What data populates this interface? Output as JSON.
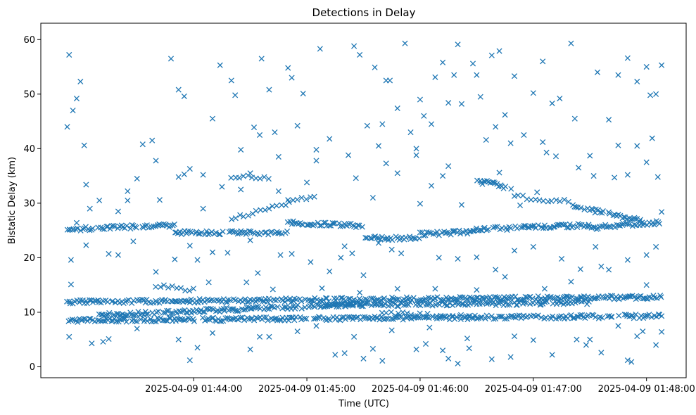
{
  "chart_data": {
    "type": "scatter",
    "title": "Detections in Delay",
    "xlabel": "Time (UTC)",
    "ylabel": "Bistatic Delay (km)",
    "marker": "x",
    "color": "#1f77b4",
    "grid": false,
    "xlim": [
      "2025-04-09 01:42:39",
      "2025-04-09 01:48:21"
    ],
    "ylim": [
      -2,
      63
    ],
    "x_ticks": [
      "2025-04-09 01:44:00",
      "2025-04-09 01:45:00",
      "2025-04-09 01:46:00",
      "2025-04-09 01:47:00",
      "2025-04-09 01:48:00"
    ],
    "y_ticks": [
      0,
      10,
      20,
      30,
      40,
      50,
      60
    ],
    "data_window": [
      "2025-04-09 01:42:53",
      "2025-04-09 01:48:08"
    ],
    "tracks": [
      {
        "start": "2025-04-09 01:42:53",
        "end": "2025-04-09 01:48:08",
        "y_start": 8.5,
        "y_end": 9.3,
        "dense": true
      },
      {
        "start": "2025-04-09 01:42:53",
        "end": "2025-04-09 01:48:08",
        "y_start": 11.9,
        "y_end": 12.8,
        "dense": true
      },
      {
        "start": "2025-04-09 01:43:10",
        "end": "2025-04-09 01:45:30",
        "y_start": 9.5,
        "y_end": 11.5,
        "dense": true
      },
      {
        "start": "2025-04-09 01:45:10",
        "end": "2025-04-09 01:47:30",
        "y_start": 11.3,
        "y_end": 11.8,
        "dense": true
      },
      {
        "start": "2025-04-09 01:45:40",
        "end": "2025-04-09 01:46:30",
        "y_start": 9.8,
        "y_end": 9.2,
        "dense": false
      },
      {
        "start": "2025-04-09 01:42:53",
        "end": "2025-04-09 01:43:50",
        "y_start": 25.2,
        "y_end": 26.0,
        "dense": true
      },
      {
        "start": "2025-04-09 01:43:50",
        "end": "2025-04-09 01:44:50",
        "y_start": 24.6,
        "y_end": 24.6,
        "dense": true
      },
      {
        "start": "2025-04-09 01:44:50",
        "end": "2025-04-09 01:45:30",
        "y_start": 26.5,
        "y_end": 25.8,
        "dense": true
      },
      {
        "start": "2025-04-09 01:45:30",
        "end": "2025-04-09 01:46:00",
        "y_start": 23.6,
        "y_end": 23.6,
        "dense": true
      },
      {
        "start": "2025-04-09 01:46:00",
        "end": "2025-04-09 01:46:30",
        "y_start": 24.3,
        "y_end": 24.8,
        "dense": true
      },
      {
        "start": "2025-04-09 01:46:30",
        "end": "2025-04-09 01:47:30",
        "y_start": 25.2,
        "y_end": 26.0,
        "dense": true
      },
      {
        "start": "2025-04-09 01:47:30",
        "end": "2025-04-09 01:48:08",
        "y_start": 25.5,
        "y_end": 26.5,
        "dense": true
      },
      {
        "start": "2025-04-09 01:46:30",
        "end": "2025-04-09 01:46:50",
        "y_start": 34.2,
        "y_end": 32.6,
        "dense": true
      },
      {
        "start": "2025-04-09 01:47:20",
        "end": "2025-04-09 01:47:58",
        "y_start": 29.6,
        "y_end": 26.6,
        "dense": true
      },
      {
        "start": "2025-04-09 01:44:20",
        "end": "2025-04-09 01:45:05",
        "y_start": 27.2,
        "y_end": 31.5,
        "dense": false
      },
      {
        "start": "2025-04-09 01:43:40",
        "end": "2025-04-09 01:44:00",
        "y_start": 14.8,
        "y_end": 14.2,
        "dense": false
      },
      {
        "start": "2025-04-09 01:46:50",
        "end": "2025-04-09 01:47:20",
        "y_start": 31.2,
        "y_end": 30.2,
        "dense": false
      },
      {
        "start": "2025-04-09 01:44:20",
        "end": "2025-04-09 01:44:40",
        "y_start": 34.8,
        "y_end": 34.8,
        "dense": false
      }
    ],
    "scatter_points": [
      [
        "2025-04-09 01:42:53",
        44.0
      ],
      [
        "2025-04-09 01:42:54",
        57.2
      ],
      [
        "2025-04-09 01:42:56",
        47.0
      ],
      [
        "2025-04-09 01:42:58",
        49.2
      ],
      [
        "2025-04-09 01:43:00",
        52.3
      ],
      [
        "2025-04-09 01:43:02",
        40.6
      ],
      [
        "2025-04-09 01:43:03",
        33.4
      ],
      [
        "2025-04-09 01:42:55",
        15.1
      ],
      [
        "2025-04-09 01:42:55",
        19.6
      ],
      [
        "2025-04-09 01:42:54",
        5.5
      ],
      [
        "2025-04-09 01:43:03",
        22.3
      ],
      [
        "2025-04-09 01:43:06",
        4.3
      ],
      [
        "2025-04-09 01:43:15",
        5.1
      ],
      [
        "2025-04-09 01:43:20",
        28.5
      ],
      [
        "2025-04-09 01:43:25",
        30.5
      ],
      [
        "2025-04-09 01:43:30",
        34.5
      ],
      [
        "2025-04-09 01:43:33",
        40.8
      ],
      [
        "2025-04-09 01:43:38",
        41.5
      ],
      [
        "2025-04-09 01:43:40",
        37.8
      ],
      [
        "2025-04-09 01:43:48",
        56.5
      ],
      [
        "2025-04-09 01:43:52",
        50.8
      ],
      [
        "2025-04-09 01:43:55",
        49.6
      ],
      [
        "2025-04-09 01:43:55",
        35.3
      ],
      [
        "2025-04-09 01:43:58",
        36.3
      ],
      [
        "2025-04-09 01:44:02",
        19.6
      ],
      [
        "2025-04-09 01:43:58",
        1.2
      ],
      [
        "2025-04-09 01:44:02",
        3.5
      ],
      [
        "2025-04-09 01:44:05",
        35.2
      ],
      [
        "2025-04-09 01:44:10",
        45.5
      ],
      [
        "2025-04-09 01:44:14",
        55.3
      ],
      [
        "2025-04-09 01:44:20",
        52.5
      ],
      [
        "2025-04-09 01:44:22",
        49.8
      ],
      [
        "2025-04-09 01:44:30",
        35.5
      ],
      [
        "2025-04-09 01:44:35",
        42.5
      ],
      [
        "2025-04-09 01:44:36",
        56.5
      ],
      [
        "2025-04-09 01:44:40",
        50.8
      ],
      [
        "2025-04-09 01:44:43",
        43.0
      ],
      [
        "2025-04-09 01:44:45",
        32.2
      ],
      [
        "2025-04-09 01:44:50",
        54.8
      ],
      [
        "2025-04-09 01:44:52",
        53.0
      ],
      [
        "2025-04-09 01:44:55",
        44.2
      ],
      [
        "2025-04-09 01:44:58",
        50.1
      ],
      [
        "2025-04-09 01:45:05",
        39.8
      ],
      [
        "2025-04-09 01:45:07",
        58.3
      ],
      [
        "2025-04-09 01:45:15",
        2.2
      ],
      [
        "2025-04-09 01:45:20",
        2.5
      ],
      [
        "2025-04-09 01:45:25",
        58.8
      ],
      [
        "2025-04-09 01:45:28",
        57.2
      ],
      [
        "2025-04-09 01:45:32",
        44.2
      ],
      [
        "2025-04-09 01:45:36",
        54.9
      ],
      [
        "2025-04-09 01:45:40",
        44.5
      ],
      [
        "2025-04-09 01:45:42",
        52.5
      ],
      [
        "2025-04-09 01:45:44",
        52.5
      ],
      [
        "2025-04-09 01:45:48",
        47.4
      ],
      [
        "2025-04-09 01:45:52",
        59.3
      ],
      [
        "2025-04-09 01:45:55",
        43.0
      ],
      [
        "2025-04-09 01:45:58",
        38.8
      ],
      [
        "2025-04-09 01:46:00",
        49.0
      ],
      [
        "2025-04-09 01:46:02",
        46.0
      ],
      [
        "2025-04-09 01:46:06",
        44.5
      ],
      [
        "2025-04-09 01:46:08",
        53.1
      ],
      [
        "2025-04-09 01:46:12",
        55.8
      ],
      [
        "2025-04-09 01:46:15",
        48.4
      ],
      [
        "2025-04-09 01:46:18",
        53.5
      ],
      [
        "2025-04-09 01:46:20",
        59.1
      ],
      [
        "2025-04-09 01:46:22",
        48.2
      ],
      [
        "2025-04-09 01:46:28",
        55.6
      ],
      [
        "2025-04-09 01:46:30",
        53.5
      ],
      [
        "2025-04-09 01:46:32",
        49.5
      ],
      [
        "2025-04-09 01:46:35",
        41.6
      ],
      [
        "2025-04-09 01:46:38",
        57.1
      ],
      [
        "2025-04-09 01:46:40",
        44.0
      ],
      [
        "2025-04-09 01:46:42",
        57.9
      ],
      [
        "2025-04-09 01:46:45",
        46.2
      ],
      [
        "2025-04-09 01:46:50",
        53.3
      ],
      [
        "2025-04-09 01:47:00",
        50.2
      ],
      [
        "2025-04-09 01:47:05",
        56.0
      ],
      [
        "2025-04-09 01:47:10",
        48.3
      ],
      [
        "2025-04-09 01:47:14",
        49.2
      ],
      [
        "2025-04-09 01:47:20",
        59.3
      ],
      [
        "2025-04-09 01:47:22",
        45.5
      ],
      [
        "2025-04-09 01:47:30",
        38.7
      ],
      [
        "2025-04-09 01:47:34",
        54.0
      ],
      [
        "2025-04-09 01:47:40",
        45.3
      ],
      [
        "2025-04-09 01:47:45",
        53.5
      ],
      [
        "2025-04-09 01:47:50",
        56.6
      ],
      [
        "2025-04-09 01:47:55",
        52.3
      ],
      [
        "2025-04-09 01:48:00",
        55.0
      ],
      [
        "2025-04-09 01:48:02",
        49.8
      ],
      [
        "2025-04-09 01:48:05",
        50.0
      ],
      [
        "2025-04-09 01:48:08",
        55.3
      ],
      [
        "2025-04-09 01:45:30",
        1.5
      ],
      [
        "2025-04-09 01:45:35",
        3.3
      ],
      [
        "2025-04-09 01:45:40",
        1.1
      ],
      [
        "2025-04-09 01:45:58",
        3.2
      ],
      [
        "2025-04-09 01:46:03",
        4.2
      ],
      [
        "2025-04-09 01:46:12",
        3.0
      ],
      [
        "2025-04-09 01:46:15",
        1.5
      ],
      [
        "2025-04-09 01:46:20",
        0.6
      ],
      [
        "2025-04-09 01:46:26",
        3.4
      ],
      [
        "2025-04-09 01:46:38",
        1.4
      ],
      [
        "2025-04-09 01:46:48",
        1.8
      ],
      [
        "2025-04-09 01:47:10",
        2.2
      ],
      [
        "2025-04-09 01:47:23",
        5.0
      ],
      [
        "2025-04-09 01:47:28",
        4.0
      ],
      [
        "2025-04-09 01:47:36",
        2.6
      ],
      [
        "2025-04-09 01:47:50",
        1.2
      ],
      [
        "2025-04-09 01:47:52",
        0.9
      ],
      [
        "2025-04-09 01:47:58",
        6.5
      ],
      [
        "2025-04-09 01:48:05",
        4.0
      ],
      [
        "2025-04-09 01:48:08",
        6.4
      ],
      [
        "2025-04-09 01:44:40",
        5.5
      ],
      [
        "2025-04-09 01:44:35",
        5.5
      ],
      [
        "2025-04-09 01:43:15",
        20.7
      ],
      [
        "2025-04-09 01:43:20",
        20.5
      ],
      [
        "2025-04-09 01:43:28",
        23.0
      ],
      [
        "2025-04-09 01:43:40",
        17.4
      ],
      [
        "2025-04-09 01:43:50",
        19.7
      ],
      [
        "2025-04-09 01:44:10",
        21.0
      ],
      [
        "2025-04-09 01:44:18",
        20.9
      ],
      [
        "2025-04-09 01:44:30",
        23.2
      ],
      [
        "2025-04-09 01:44:34",
        17.2
      ],
      [
        "2025-04-09 01:44:46",
        20.5
      ],
      [
        "2025-04-09 01:44:52",
        20.7
      ],
      [
        "2025-04-09 01:45:02",
        19.2
      ],
      [
        "2025-04-09 01:45:12",
        17.5
      ],
      [
        "2025-04-09 01:45:18",
        20.0
      ],
      [
        "2025-04-09 01:45:20",
        22.1
      ],
      [
        "2025-04-09 01:45:24",
        20.8
      ],
      [
        "2025-04-09 01:45:30",
        16.8
      ],
      [
        "2025-04-09 01:45:38",
        22.7
      ],
      [
        "2025-04-09 01:45:45",
        21.5
      ],
      [
        "2025-04-09 01:45:50",
        20.8
      ],
      [
        "2025-04-09 01:46:10",
        20.0
      ],
      [
        "2025-04-09 01:46:20",
        19.8
      ],
      [
        "2025-04-09 01:46:30",
        20.1
      ],
      [
        "2025-04-09 01:46:40",
        17.8
      ],
      [
        "2025-04-09 01:46:50",
        21.3
      ],
      [
        "2025-04-09 01:47:00",
        22.0
      ],
      [
        "2025-04-09 01:47:15",
        19.8
      ],
      [
        "2025-04-09 01:47:25",
        17.9
      ],
      [
        "2025-04-09 01:47:33",
        22.0
      ],
      [
        "2025-04-09 01:47:40",
        17.8
      ],
      [
        "2025-04-09 01:47:50",
        19.6
      ],
      [
        "2025-04-09 01:48:00",
        20.5
      ],
      [
        "2025-04-09 01:48:05",
        22.0
      ],
      [
        "2025-04-09 01:47:36",
        18.4
      ],
      [
        "2025-04-09 01:43:10",
        30.5
      ],
      [
        "2025-04-09 01:43:25",
        32.2
      ],
      [
        "2025-04-09 01:43:42",
        30.6
      ],
      [
        "2025-04-09 01:43:52",
        34.8
      ],
      [
        "2025-04-09 01:44:05",
        29.0
      ],
      [
        "2025-04-09 01:44:15",
        33.0
      ],
      [
        "2025-04-09 01:44:25",
        32.5
      ],
      [
        "2025-04-09 01:44:45",
        38.5
      ],
      [
        "2025-04-09 01:44:50",
        30.6
      ],
      [
        "2025-04-09 01:45:00",
        33.8
      ],
      [
        "2025-04-09 01:45:05",
        37.8
      ],
      [
        "2025-04-09 01:45:22",
        38.8
      ],
      [
        "2025-04-09 01:45:26",
        34.6
      ],
      [
        "2025-04-09 01:45:35",
        31.0
      ],
      [
        "2025-04-09 01:45:42",
        37.3
      ],
      [
        "2025-04-09 01:45:48",
        35.5
      ],
      [
        "2025-04-09 01:46:00",
        29.9
      ],
      [
        "2025-04-09 01:46:06",
        33.2
      ],
      [
        "2025-04-09 01:46:12",
        35.0
      ],
      [
        "2025-04-09 01:46:22",
        29.7
      ],
      [
        "2025-04-09 01:46:33",
        33.5
      ],
      [
        "2025-04-09 01:46:42",
        35.6
      ],
      [
        "2025-04-09 01:46:53",
        29.6
      ],
      [
        "2025-04-09 01:47:02",
        32.0
      ],
      [
        "2025-04-09 01:47:12",
        38.6
      ],
      [
        "2025-04-09 01:47:24",
        36.5
      ],
      [
        "2025-04-09 01:47:32",
        35.0
      ],
      [
        "2025-04-09 01:47:43",
        34.7
      ],
      [
        "2025-04-09 01:47:50",
        35.2
      ],
      [
        "2025-04-09 01:47:55",
        40.5
      ],
      [
        "2025-04-09 01:48:00",
        37.5
      ],
      [
        "2025-04-09 01:48:03",
        41.9
      ],
      [
        "2025-04-09 01:48:06",
        34.8
      ],
      [
        "2025-04-09 01:48:08",
        28.4
      ],
      [
        "2025-04-09 01:46:55",
        42.5
      ],
      [
        "2025-04-09 01:47:05",
        41.2
      ],
      [
        "2025-04-09 01:47:07",
        39.3
      ],
      [
        "2025-04-09 01:46:48",
        41.0
      ],
      [
        "2025-04-09 01:47:45",
        40.6
      ],
      [
        "2025-04-09 01:46:15",
        36.8
      ],
      [
        "2025-04-09 01:45:58",
        40.0
      ],
      [
        "2025-04-09 01:44:25",
        39.8
      ],
      [
        "2025-04-09 01:44:32",
        43.9
      ],
      [
        "2025-04-09 01:45:12",
        41.8
      ],
      [
        "2025-04-09 01:45:38",
        40.5
      ],
      [
        "2025-04-09 01:43:05",
        29.0
      ],
      [
        "2025-04-09 01:42:58",
        26.4
      ],
      [
        "2025-04-09 01:43:58",
        22.2
      ],
      [
        "2025-04-09 01:44:08",
        15.5
      ],
      [
        "2025-04-09 01:44:28",
        15.5
      ],
      [
        "2025-04-09 01:44:42",
        14.2
      ],
      [
        "2025-04-09 01:45:08",
        14.4
      ],
      [
        "2025-04-09 01:45:28",
        13.6
      ],
      [
        "2025-04-09 01:45:48",
        14.3
      ],
      [
        "2025-04-09 01:46:08",
        14.3
      ],
      [
        "2025-04-09 01:46:30",
        14.1
      ],
      [
        "2025-04-09 01:46:45",
        16.5
      ],
      [
        "2025-04-09 01:47:06",
        14.3
      ],
      [
        "2025-04-09 01:47:20",
        15.6
      ],
      [
        "2025-04-09 01:48:00",
        15.0
      ],
      [
        "2025-04-09 01:43:12",
        4.6
      ],
      [
        "2025-04-09 01:43:30",
        7.0
      ],
      [
        "2025-04-09 01:43:52",
        5.0
      ],
      [
        "2025-04-09 01:44:10",
        6.2
      ],
      [
        "2025-04-09 01:44:30",
        3.2
      ],
      [
        "2025-04-09 01:44:55",
        6.5
      ],
      [
        "2025-04-09 01:45:05",
        7.5
      ],
      [
        "2025-04-09 01:45:25",
        5.5
      ],
      [
        "2025-04-09 01:45:45",
        6.7
      ],
      [
        "2025-04-09 01:46:05",
        7.2
      ],
      [
        "2025-04-09 01:46:25",
        5.2
      ],
      [
        "2025-04-09 01:46:50",
        5.6
      ],
      [
        "2025-04-09 01:47:00",
        4.9
      ],
      [
        "2025-04-09 01:47:30",
        5.0
      ],
      [
        "2025-04-09 01:47:45",
        7.5
      ],
      [
        "2025-04-09 01:47:55",
        5.6
      ]
    ]
  }
}
